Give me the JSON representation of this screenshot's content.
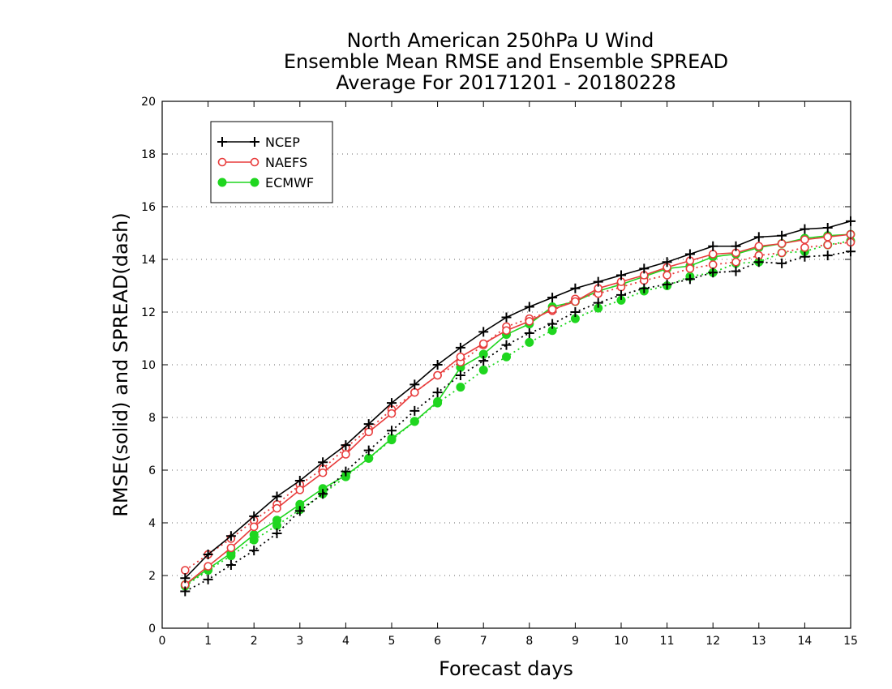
{
  "chart_data": {
    "type": "line",
    "title": [
      "North American 250hPa U Wind",
      "Ensemble Mean RMSE and Ensemble SPREAD",
      "Average For 20171201 - 20180228"
    ],
    "xlabel": "Forecast days",
    "ylabel": "RMSE(solid) and SPREAD(dash)",
    "xlim": [
      0,
      15
    ],
    "ylim": [
      0,
      20
    ],
    "xticks": [
      0,
      1,
      2,
      3,
      4,
      5,
      6,
      7,
      8,
      9,
      10,
      11,
      12,
      13,
      14,
      15
    ],
    "yticks": [
      0,
      2,
      4,
      6,
      8,
      10,
      12,
      14,
      16,
      18,
      20
    ],
    "grid": "horizontal dotted",
    "legend_position": "top-left",
    "x": [
      0.5,
      1,
      1.5,
      2,
      2.5,
      3,
      3.5,
      4,
      4.5,
      5,
      5.5,
      6,
      6.5,
      7,
      7.5,
      8,
      8.5,
      9,
      9.5,
      10,
      10.5,
      11,
      11.5,
      12,
      12.5,
      13,
      13.5,
      14,
      14.5,
      15
    ],
    "series": [
      {
        "name": "NCEP",
        "color": "#000000",
        "marker": "plus",
        "rmse": [
          1.9,
          2.8,
          3.5,
          4.25,
          5.0,
          5.6,
          6.3,
          6.95,
          7.75,
          8.55,
          9.25,
          10.0,
          10.65,
          11.25,
          11.8,
          12.2,
          12.55,
          12.9,
          13.15,
          13.4,
          13.65,
          13.9,
          14.2,
          14.5,
          14.5,
          14.85,
          14.9,
          15.15,
          15.2,
          15.45
        ],
        "spread": [
          1.4,
          1.85,
          2.4,
          2.95,
          3.6,
          4.45,
          5.1,
          5.95,
          6.75,
          7.5,
          8.25,
          8.95,
          9.6,
          10.15,
          10.75,
          11.2,
          11.55,
          12.0,
          12.35,
          12.65,
          12.9,
          13.05,
          13.25,
          13.5,
          13.55,
          13.9,
          13.85,
          14.1,
          14.15,
          14.3
        ]
      },
      {
        "name": "NAEFS",
        "color": "#e83c3c",
        "marker": "circle-open",
        "rmse": [
          1.65,
          2.35,
          3.05,
          3.85,
          4.55,
          5.25,
          5.9,
          6.6,
          7.45,
          8.15,
          8.95,
          9.6,
          10.3,
          10.8,
          11.3,
          11.65,
          12.1,
          12.4,
          12.9,
          13.15,
          13.4,
          13.7,
          13.95,
          14.2,
          14.25,
          14.5,
          14.6,
          14.75,
          14.85,
          14.95
        ],
        "spread": [
          2.2,
          2.8,
          3.4,
          4.1,
          4.7,
          5.45,
          6.05,
          6.85,
          7.55,
          8.3,
          8.95,
          9.6,
          10.1,
          10.75,
          11.45,
          11.75,
          12.05,
          12.5,
          12.7,
          12.95,
          13.2,
          13.4,
          13.65,
          13.8,
          13.9,
          14.15,
          14.25,
          14.45,
          14.55,
          14.65
        ]
      },
      {
        "name": "ECMWF",
        "color": "#1fd61f",
        "marker": "circle-filled",
        "rmse": [
          1.65,
          2.25,
          2.85,
          3.55,
          4.1,
          4.7,
          5.3,
          5.8,
          6.45,
          7.2,
          7.85,
          8.6,
          9.9,
          10.4,
          11.15,
          11.55,
          12.2,
          12.4,
          12.8,
          13.05,
          13.35,
          13.65,
          13.75,
          14.1,
          14.2,
          14.45,
          14.6,
          14.8,
          14.9,
          14.95
        ],
        "spread": [
          1.6,
          2.2,
          2.75,
          3.35,
          3.9,
          4.5,
          5.1,
          5.75,
          6.45,
          7.15,
          7.85,
          8.55,
          9.15,
          9.8,
          10.3,
          10.85,
          11.3,
          11.75,
          12.15,
          12.45,
          12.8,
          13.0,
          13.35,
          13.5,
          13.85,
          13.9,
          14.25,
          14.3,
          14.55,
          14.7
        ]
      }
    ]
  }
}
